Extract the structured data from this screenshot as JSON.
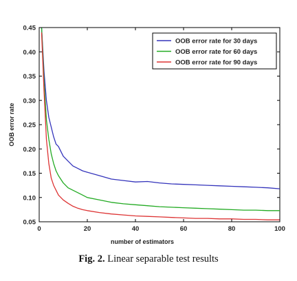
{
  "caption": {
    "label": "Fig. 2.",
    "text": " Linear separable test results"
  },
  "chart_data": {
    "type": "line",
    "title": "",
    "xlabel": "number of estimators",
    "ylabel": "OOB error rate",
    "xlim": [
      0,
      100
    ],
    "ylim": [
      0.05,
      0.45
    ],
    "xticks": [
      0,
      20,
      40,
      60,
      80,
      100
    ],
    "yticks": [
      0.05,
      0.1,
      0.15,
      0.2,
      0.25,
      0.3,
      0.35,
      0.4,
      0.45
    ],
    "ytick_labels": [
      "0.05",
      "0.10",
      "0.15",
      "0.20",
      "0.25",
      "0.30",
      "0.35",
      "0.40",
      "0.45"
    ],
    "grid": false,
    "legend_position": "top-right",
    "series": [
      {
        "name": "OOB error rate for 30 days",
        "color": "#3333bb",
        "x": [
          1,
          2,
          3,
          4,
          5,
          6,
          7,
          8,
          10,
          12,
          14,
          16,
          18,
          20,
          25,
          30,
          35,
          40,
          45,
          50,
          55,
          60,
          65,
          70,
          75,
          80,
          85,
          90,
          95,
          100
        ],
        "y": [
          0.45,
          0.36,
          0.3,
          0.265,
          0.245,
          0.225,
          0.21,
          0.205,
          0.185,
          0.175,
          0.165,
          0.16,
          0.155,
          0.152,
          0.145,
          0.138,
          0.135,
          0.132,
          0.133,
          0.13,
          0.128,
          0.127,
          0.126,
          0.125,
          0.124,
          0.123,
          0.122,
          0.121,
          0.12,
          0.118
        ]
      },
      {
        "name": "OOB error rate for 60 days",
        "color": "#22aa22",
        "x": [
          1,
          2,
          3,
          4,
          5,
          6,
          7,
          8,
          10,
          12,
          14,
          16,
          18,
          20,
          25,
          30,
          35,
          40,
          45,
          50,
          55,
          60,
          65,
          70,
          75,
          80,
          85,
          90,
          95,
          100
        ],
        "y": [
          0.45,
          0.34,
          0.26,
          0.22,
          0.19,
          0.17,
          0.155,
          0.145,
          0.13,
          0.12,
          0.115,
          0.11,
          0.105,
          0.1,
          0.095,
          0.09,
          0.087,
          0.085,
          0.083,
          0.081,
          0.08,
          0.079,
          0.078,
          0.077,
          0.076,
          0.075,
          0.074,
          0.074,
          0.073,
          0.073
        ]
      },
      {
        "name": "OOB error rate for 90 days",
        "color": "#dd3333",
        "x": [
          1,
          2,
          3,
          4,
          5,
          6,
          7,
          8,
          10,
          12,
          14,
          16,
          18,
          20,
          25,
          30,
          35,
          40,
          45,
          50,
          55,
          60,
          65,
          70,
          75,
          80,
          85,
          90,
          95,
          100
        ],
        "y": [
          0.44,
          0.32,
          0.22,
          0.17,
          0.14,
          0.125,
          0.115,
          0.105,
          0.095,
          0.088,
          0.082,
          0.078,
          0.075,
          0.073,
          0.069,
          0.066,
          0.064,
          0.062,
          0.061,
          0.06,
          0.059,
          0.058,
          0.057,
          0.057,
          0.056,
          0.056,
          0.055,
          0.055,
          0.054,
          0.054
        ]
      }
    ]
  }
}
